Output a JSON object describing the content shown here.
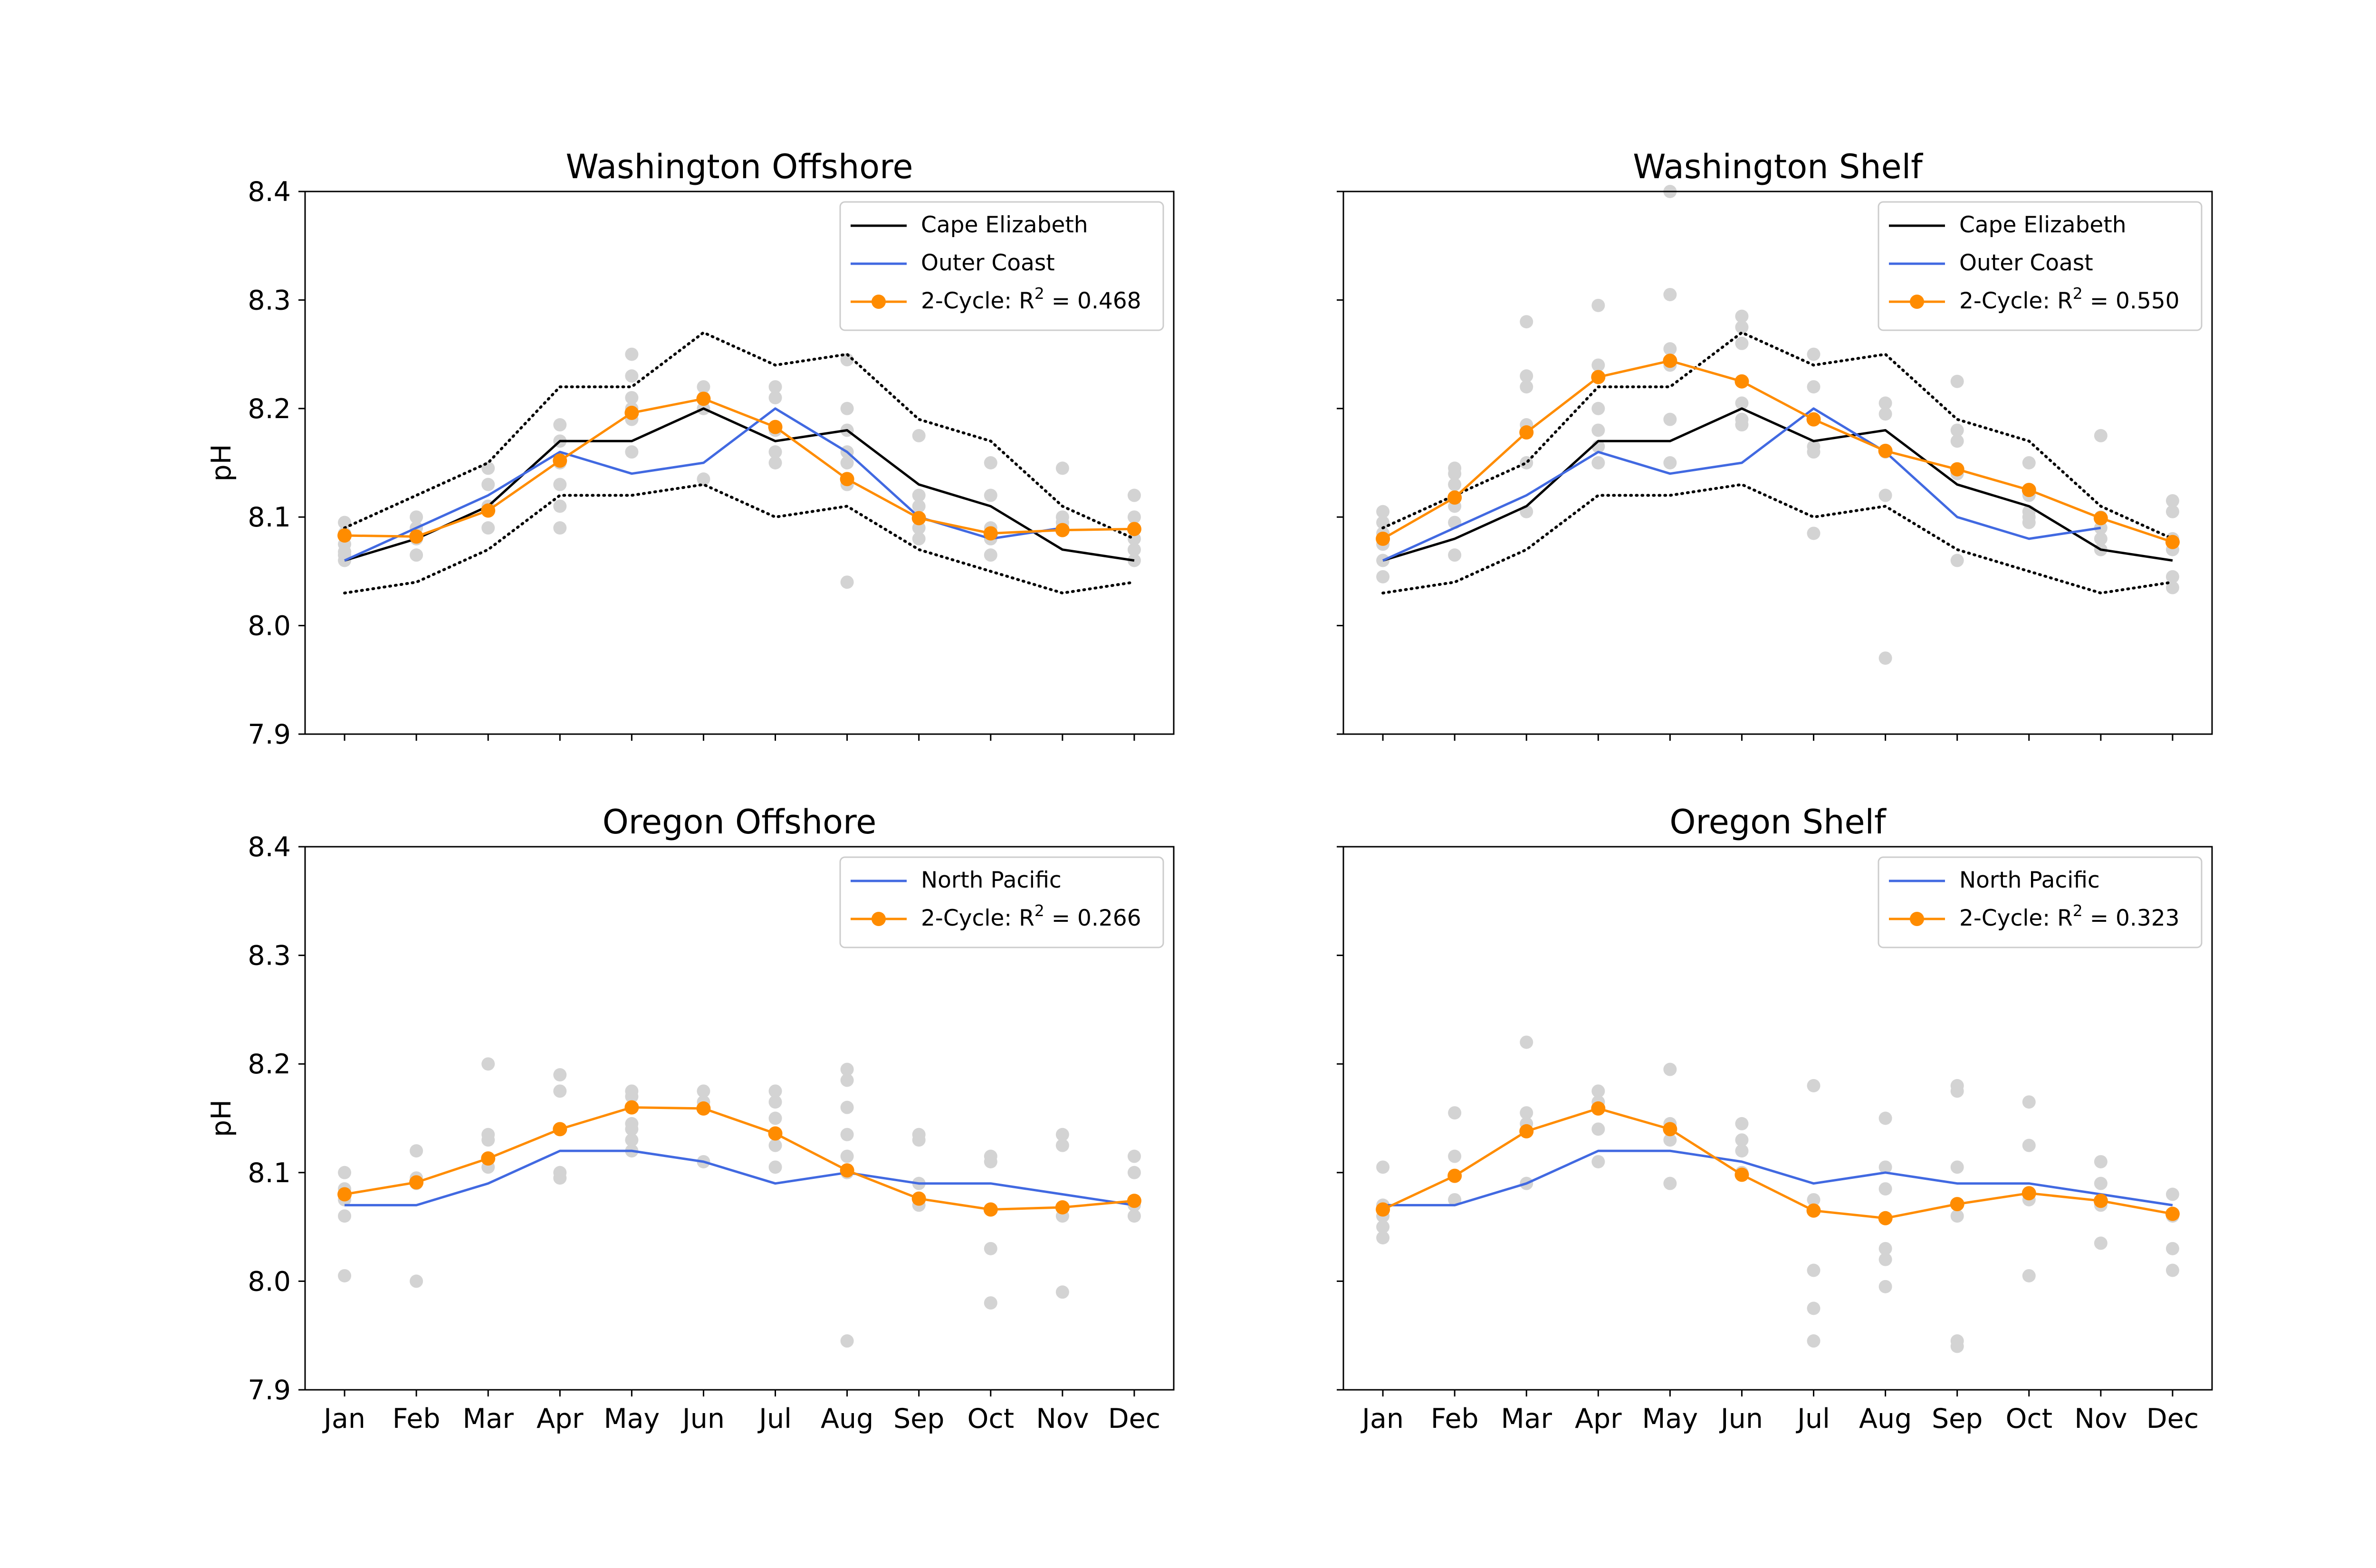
{
  "figure": {
    "months": [
      "Jan",
      "Feb",
      "Mar",
      "Apr",
      "May",
      "Jun",
      "Jul",
      "Aug",
      "Sep",
      "Oct",
      "Nov",
      "Dec"
    ],
    "yticks": [
      "7.9",
      "8.0",
      "8.1",
      "8.2",
      "8.3",
      "8.4"
    ],
    "ylabel": "pH"
  },
  "colors": {
    "black": "#000000",
    "blue": "#4169e1",
    "orange": "#ff8c00",
    "gray": "#d3d3d3"
  },
  "chart_data": [
    {
      "type": "line",
      "title": "Washington Offshore",
      "xlabel": "",
      "ylabel": "pH",
      "ylim": [
        7.9,
        8.4
      ],
      "categories": [
        "Jan",
        "Feb",
        "Mar",
        "Apr",
        "May",
        "Jun",
        "Jul",
        "Aug",
        "Sep",
        "Oct",
        "Nov",
        "Dec"
      ],
      "series": [
        {
          "name": "Cape Elizabeth",
          "color": "black",
          "values": [
            8.06,
            8.08,
            8.11,
            8.17,
            8.17,
            8.2,
            8.17,
            8.18,
            8.13,
            8.11,
            8.07,
            8.06
          ]
        },
        {
          "name": "Cape Elizabeth upper bound",
          "color": "black",
          "style": "dotted",
          "legend": false,
          "values": [
            8.09,
            8.12,
            8.15,
            8.22,
            8.22,
            8.27,
            8.24,
            8.25,
            8.19,
            8.17,
            8.11,
            8.08
          ]
        },
        {
          "name": "Cape Elizabeth lower bound",
          "color": "black",
          "style": "dotted",
          "legend": false,
          "values": [
            8.03,
            8.04,
            8.07,
            8.12,
            8.12,
            8.13,
            8.1,
            8.11,
            8.07,
            8.05,
            8.03,
            8.04
          ]
        },
        {
          "name": "Outer Coast",
          "color": "blue",
          "values": [
            8.06,
            8.09,
            8.12,
            8.16,
            8.14,
            8.15,
            8.2,
            8.16,
            8.1,
            8.08,
            8.09,
            null
          ]
        },
        {
          "name": "2-Cycle",
          "color": "orange",
          "markers": true,
          "values": [
            8.083,
            8.082,
            8.106,
            8.152,
            8.196,
            8.209,
            8.183,
            8.135,
            8.099,
            8.085,
            8.088,
            8.089
          ]
        }
      ],
      "scatter": [
        [
          8.095,
          8.085,
          8.075,
          8.068,
          8.065,
          8.06
        ],
        [
          8.1,
          8.09,
          8.08,
          8.065
        ],
        [
          8.145,
          8.13,
          8.11,
          8.09
        ],
        [
          8.185,
          8.17,
          8.15,
          8.13,
          8.11,
          8.09
        ],
        [
          8.25,
          8.23,
          8.21,
          8.2,
          8.19,
          8.16
        ],
        [
          8.22,
          8.21,
          8.2,
          8.135
        ],
        [
          8.22,
          8.21,
          8.18,
          8.16,
          8.15
        ],
        [
          8.245,
          8.2,
          8.18,
          8.16,
          8.15,
          8.13,
          8.04
        ],
        [
          8.175,
          8.12,
          8.11,
          8.09,
          8.08
        ],
        [
          8.15,
          8.12,
          8.09,
          8.08,
          8.065
        ],
        [
          8.145,
          8.1,
          8.095,
          8.09
        ],
        [
          8.12,
          8.1,
          8.08,
          8.07,
          8.06
        ]
      ],
      "legend": {
        "placement": "top-right",
        "entries": [
          {
            "label": "Cape Elizabeth",
            "color": "black",
            "marker": false
          },
          {
            "label": "Outer Coast",
            "color": "blue",
            "marker": false
          },
          {
            "label_prefix": "2-Cycle: R",
            "label_sup": "2",
            "label_suffix": " = 0.468",
            "color": "orange",
            "marker": true
          }
        ]
      }
    },
    {
      "type": "line",
      "title": "Washington Shelf",
      "xlabel": "",
      "ylabel": "",
      "ylim": [
        7.9,
        8.4
      ],
      "categories": [
        "Jan",
        "Feb",
        "Mar",
        "Apr",
        "May",
        "Jun",
        "Jul",
        "Aug",
        "Sep",
        "Oct",
        "Nov",
        "Dec"
      ],
      "series": [
        {
          "name": "Cape Elizabeth",
          "color": "black",
          "values": [
            8.06,
            8.08,
            8.11,
            8.17,
            8.17,
            8.2,
            8.17,
            8.18,
            8.13,
            8.11,
            8.07,
            8.06
          ]
        },
        {
          "name": "Cape Elizabeth upper bound",
          "color": "black",
          "style": "dotted",
          "legend": false,
          "values": [
            8.09,
            8.12,
            8.15,
            8.22,
            8.22,
            8.27,
            8.24,
            8.25,
            8.19,
            8.17,
            8.11,
            8.08
          ]
        },
        {
          "name": "Cape Elizabeth lower bound",
          "color": "black",
          "style": "dotted",
          "legend": false,
          "values": [
            8.03,
            8.04,
            8.07,
            8.12,
            8.12,
            8.13,
            8.1,
            8.11,
            8.07,
            8.05,
            8.03,
            8.04
          ]
        },
        {
          "name": "Outer Coast",
          "color": "blue",
          "values": [
            8.06,
            8.09,
            8.12,
            8.16,
            8.14,
            8.15,
            8.2,
            8.16,
            8.1,
            8.08,
            8.09,
            null
          ]
        },
        {
          "name": "2-Cycle",
          "color": "orange",
          "markers": true,
          "values": [
            8.08,
            8.118,
            8.178,
            8.229,
            8.244,
            8.225,
            8.19,
            8.161,
            8.144,
            8.125,
            8.099,
            8.077
          ]
        }
      ],
      "scatter": [
        [
          8.105,
          8.095,
          8.085,
          8.075,
          8.06,
          8.045
        ],
        [
          8.145,
          8.14,
          8.13,
          8.11,
          8.095,
          8.065
        ],
        [
          8.28,
          8.23,
          8.22,
          8.185,
          8.15,
          8.105
        ],
        [
          8.295,
          8.24,
          8.2,
          8.18,
          8.165,
          8.15
        ],
        [
          8.4,
          8.305,
          8.255,
          8.24,
          8.19,
          8.15
        ],
        [
          8.285,
          8.275,
          8.26,
          8.205,
          8.19,
          8.185
        ],
        [
          8.25,
          8.22,
          8.165,
          8.16,
          8.085
        ],
        [
          8.205,
          8.195,
          8.16,
          8.12,
          7.97
        ],
        [
          8.225,
          8.18,
          8.17,
          8.14,
          8.06
        ],
        [
          8.15,
          8.12,
          8.105,
          8.1,
          8.095
        ],
        [
          8.175,
          8.1,
          8.09,
          8.08,
          8.07
        ],
        [
          8.115,
          8.105,
          8.08,
          8.07,
          8.045,
          8.035
        ]
      ],
      "legend": {
        "placement": "top-right",
        "entries": [
          {
            "label": "Cape Elizabeth",
            "color": "black",
            "marker": false
          },
          {
            "label": "Outer Coast",
            "color": "blue",
            "marker": false
          },
          {
            "label_prefix": "2-Cycle: R",
            "label_sup": "2",
            "label_suffix": " = 0.550",
            "color": "orange",
            "marker": true
          }
        ]
      }
    },
    {
      "type": "line",
      "title": "Oregon Offshore",
      "xlabel": "",
      "ylabel": "pH",
      "ylim": [
        7.9,
        8.4
      ],
      "categories": [
        "Jan",
        "Feb",
        "Mar",
        "Apr",
        "May",
        "Jun",
        "Jul",
        "Aug",
        "Sep",
        "Oct",
        "Nov",
        "Dec"
      ],
      "series": [
        {
          "name": "North Pacific",
          "color": "blue",
          "values": [
            8.07,
            8.07,
            8.09,
            8.12,
            8.12,
            8.11,
            8.09,
            8.1,
            8.09,
            8.09,
            8.08,
            8.07
          ]
        },
        {
          "name": "2-Cycle",
          "color": "orange",
          "markers": true,
          "values": [
            8.08,
            8.091,
            8.113,
            8.14,
            8.16,
            8.159,
            8.136,
            8.102,
            8.076,
            8.066,
            8.068,
            8.074
          ]
        }
      ],
      "scatter": [
        [
          8.1,
          8.085,
          8.075,
          8.06,
          8.005
        ],
        [
          8.12,
          8.095,
          8.09,
          8.0
        ],
        [
          8.2,
          8.135,
          8.13,
          8.105
        ],
        [
          8.19,
          8.175,
          8.14,
          8.1,
          8.095
        ],
        [
          8.175,
          8.17,
          8.145,
          8.14,
          8.13,
          8.12
        ],
        [
          8.175,
          8.165,
          8.16,
          8.11
        ],
        [
          8.175,
          8.165,
          8.15,
          8.125,
          8.105
        ],
        [
          8.195,
          8.185,
          8.16,
          8.135,
          8.115,
          8.1,
          7.945
        ],
        [
          8.135,
          8.13,
          8.09,
          8.07
        ],
        [
          8.115,
          8.11,
          8.03,
          7.98
        ],
        [
          8.135,
          8.125,
          8.06,
          7.99
        ],
        [
          8.115,
          8.1,
          8.07,
          8.06
        ]
      ],
      "legend": {
        "placement": "top-right",
        "entries": [
          {
            "label": "North Pacific",
            "color": "blue",
            "marker": false
          },
          {
            "label_prefix": "2-Cycle: R",
            "label_sup": "2",
            "label_suffix": " = 0.266",
            "color": "orange",
            "marker": true
          }
        ]
      }
    },
    {
      "type": "line",
      "title": "Oregon Shelf",
      "xlabel": "",
      "ylabel": "",
      "ylim": [
        7.9,
        8.4
      ],
      "categories": [
        "Jan",
        "Feb",
        "Mar",
        "Apr",
        "May",
        "Jun",
        "Jul",
        "Aug",
        "Sep",
        "Oct",
        "Nov",
        "Dec"
      ],
      "series": [
        {
          "name": "North Pacific",
          "color": "blue",
          "values": [
            8.07,
            8.07,
            8.09,
            8.12,
            8.12,
            8.11,
            8.09,
            8.1,
            8.09,
            8.09,
            8.08,
            8.07
          ]
        },
        {
          "name": "2-Cycle",
          "color": "orange",
          "markers": true,
          "values": [
            8.066,
            8.097,
            8.138,
            8.159,
            8.14,
            8.098,
            8.065,
            8.058,
            8.071,
            8.081,
            8.074,
            8.062
          ]
        }
      ],
      "scatter": [
        [
          8.105,
          8.07,
          8.06,
          8.05,
          8.04
        ],
        [
          8.155,
          8.115,
          8.075
        ],
        [
          8.22,
          8.155,
          8.145,
          8.09
        ],
        [
          8.175,
          8.165,
          8.14,
          8.11
        ],
        [
          8.195,
          8.145,
          8.13,
          8.09
        ],
        [
          8.145,
          8.13,
          8.12,
          8.1
        ],
        [
          8.18,
          8.075,
          8.01,
          7.975,
          7.945
        ],
        [
          8.15,
          8.105,
          8.085,
          8.03,
          8.02,
          7.995
        ],
        [
          8.18,
          8.175,
          8.105,
          8.06,
          7.945,
          7.94
        ],
        [
          8.165,
          8.125,
          8.075,
          8.005
        ],
        [
          8.11,
          8.09,
          8.07,
          8.035
        ],
        [
          8.08,
          8.06,
          8.03,
          8.01
        ]
      ],
      "legend": {
        "placement": "top-right",
        "entries": [
          {
            "label": "North Pacific",
            "color": "blue",
            "marker": false
          },
          {
            "label_prefix": "2-Cycle: R",
            "label_sup": "2",
            "label_suffix": " = 0.323",
            "color": "orange",
            "marker": true
          }
        ]
      }
    }
  ]
}
